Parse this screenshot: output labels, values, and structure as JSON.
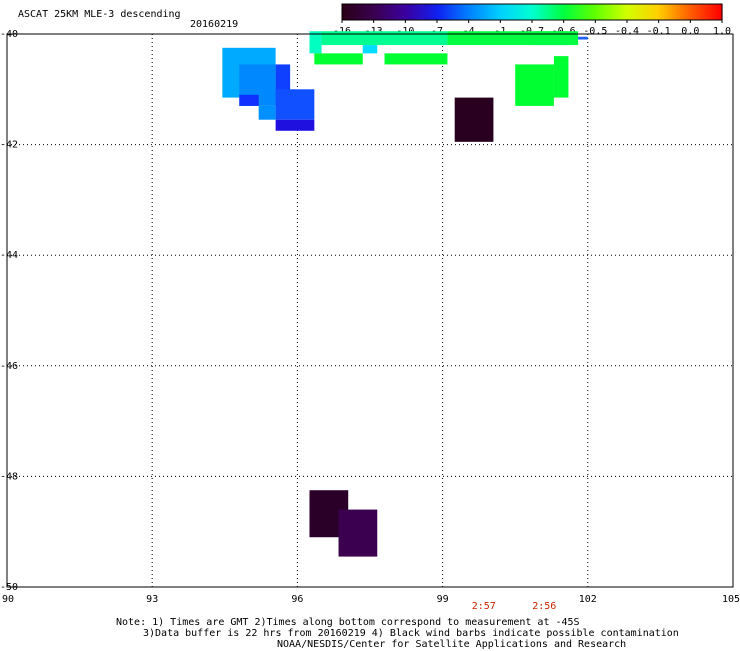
{
  "header": {
    "product_title": "ASCAT 25KM MLE-3 descending",
    "date": "20160219"
  },
  "colorbar": {
    "tick_labels": [
      "-16",
      "-13",
      "-10",
      "-7",
      "-4",
      "-1",
      "-0.7",
      "-0.6",
      "-0.5",
      "-0.4",
      "-0.1",
      "0.0",
      "1.0"
    ],
    "colors": [
      "#2a0018",
      "#3a0050",
      "#3a00a0",
      "#1020f0",
      "#0080ff",
      "#00d0ff",
      "#00ffd0",
      "#00ff40",
      "#60ff00",
      "#d0ff00",
      "#ffd000",
      "#ff6000",
      "#ff0000"
    ]
  },
  "map": {
    "lon_min": 90,
    "lon_max": 105,
    "lat_top": -40,
    "lat_bottom": -50,
    "lon_ticks": [
      "90",
      "93",
      "96",
      "99",
      "102",
      "105"
    ],
    "lat_ticks": [
      "-40",
      "-42",
      "-44",
      "-46",
      "-48",
      "-50"
    ],
    "grid_lines": "dotted",
    "time_labels": [
      {
        "text": "2:57",
        "lon": 99.85
      },
      {
        "text": "2:56",
        "lon": 101.1
      }
    ],
    "time_label_color": "#cc2200",
    "cells": [
      {
        "lon0": 94.45,
        "lon1": 95.55,
        "lat0": -40.25,
        "lat1": -41.15,
        "color": "#00aaff"
      },
      {
        "lon0": 94.8,
        "lon1": 95.55,
        "lat0": -40.55,
        "lat1": -41.3,
        "color": "#0088ff"
      },
      {
        "lon0": 95.55,
        "lon1": 95.85,
        "lat0": -40.55,
        "lat1": -41.3,
        "color": "#1040ff"
      },
      {
        "lon0": 94.8,
        "lon1": 95.2,
        "lat0": -41.1,
        "lat1": -41.3,
        "color": "#1030ff"
      },
      {
        "lon0": 95.2,
        "lon1": 95.55,
        "lat0": -41.3,
        "lat1": -41.55,
        "color": "#0090ff"
      },
      {
        "lon0": 95.55,
        "lon1": 96.35,
        "lat0": -41.0,
        "lat1": -41.55,
        "color": "#1050ff"
      },
      {
        "lon0": 95.55,
        "lon1": 96.35,
        "lat0": -41.55,
        "lat1": -41.75,
        "color": "#2010e0"
      },
      {
        "lon0": 96.25,
        "lon1": 96.5,
        "lat0": -39.95,
        "lat1": -40.35,
        "color": "#00ffc0"
      },
      {
        "lon0": 96.5,
        "lon1": 99.1,
        "lat0": -39.95,
        "lat1": -40.2,
        "color": "#00ff90"
      },
      {
        "lon0": 99.1,
        "lon1": 101.6,
        "lat0": -39.95,
        "lat1": -40.2,
        "color": "#00ff40"
      },
      {
        "lon0": 97.35,
        "lon1": 97.65,
        "lat0": -40.2,
        "lat1": -40.35,
        "color": "#00ddff"
      },
      {
        "lon0": 96.35,
        "lon1": 97.35,
        "lat0": -40.35,
        "lat1": -40.55,
        "color": "#00ff30"
      },
      {
        "lon0": 97.8,
        "lon1": 99.1,
        "lat0": -40.35,
        "lat1": -40.55,
        "color": "#00ff30"
      },
      {
        "lon0": 100.9,
        "lon1": 101.8,
        "lat0": -39.95,
        "lat1": -40.2,
        "color": "#00ff40"
      },
      {
        "lon0": 101.8,
        "lon1": 102.0,
        "lat0": -40.05,
        "lat1": -40.1,
        "color": "#2060ff"
      },
      {
        "lon0": 100.5,
        "lon1": 101.3,
        "lat0": -40.55,
        "lat1": -41.3,
        "color": "#00ff30"
      },
      {
        "lon0": 101.3,
        "lon1": 101.6,
        "lat0": -40.4,
        "lat1": -41.15,
        "color": "#00ff30"
      },
      {
        "lon0": 99.25,
        "lon1": 100.05,
        "lat0": -41.15,
        "lat1": -41.95,
        "color": "#2a0020"
      },
      {
        "lon0": 96.25,
        "lon1": 97.05,
        "lat0": -48.25,
        "lat1": -49.1,
        "color": "#2a0028"
      },
      {
        "lon0": 96.85,
        "lon1": 97.65,
        "lat0": -48.6,
        "lat1": -49.45,
        "color": "#3c0050"
      }
    ]
  },
  "footer": {
    "note_line1": "Note: 1) Times are GMT 2)Times along bottom correspond to measurement at -45S",
    "note_line2": "3)Data buffer is 22 hrs from 20160219 4) Black wind barbs indicate possible contamination",
    "credit": "NOAA/NESDIS/Center for Satellite Applications and Research"
  }
}
